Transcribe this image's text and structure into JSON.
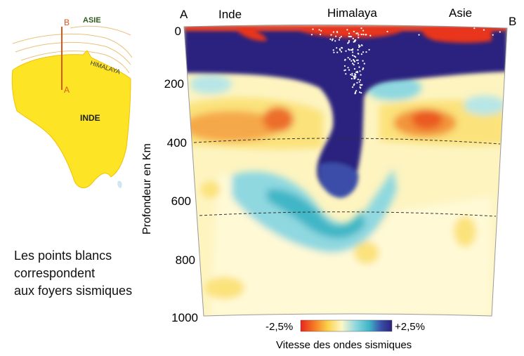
{
  "map": {
    "label_asia": "ASIE",
    "label_himalaya": "HIMALAYA",
    "label_india": "INDE",
    "point_a": "A",
    "point_b": "B"
  },
  "caption": {
    "line1": "Les points blancs",
    "line2": "correspondent",
    "line3": "aux foyers sismiques"
  },
  "section": {
    "end_left": "A",
    "end_right": "B",
    "label_inde": "Inde",
    "label_himalaya": "Himalaya",
    "label_asie": "Asie",
    "y_axis_title": "Profondeur en Km",
    "depth_ticks": [
      "0",
      "200",
      "400",
      "600",
      "800",
      "1000"
    ],
    "legend_min": "-2,5%",
    "legend_max": "+2,5%",
    "legend_title": "Vitesse des ondes sismiques",
    "colors": {
      "hot": "#e8341c",
      "orange": "#f08a2a",
      "yellow": "#fde68a",
      "pale": "#fdf6c8",
      "cyan": "#8fd8e0",
      "teal": "#3fb6c6",
      "blue": "#3a4ea8",
      "dark_blue": "#2a237e"
    }
  }
}
